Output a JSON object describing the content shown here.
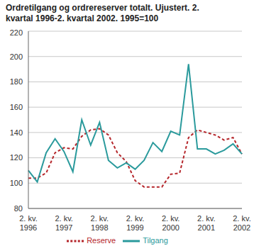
{
  "chart_data": {
    "type": "line",
    "title": "Ordretilgang og ordrereserver totalt. Ujustert. 2. kvartal 1996-2. kvartal 2002. 1995=100",
    "categories": [
      "2. kv. 1996",
      null,
      null,
      null,
      "2. kv. 1997",
      null,
      null,
      null,
      "2. kv. 1998",
      null,
      null,
      null,
      "2. kv. 1999",
      null,
      null,
      null,
      "2. kv. 2000",
      null,
      null,
      null,
      "2. kv. 2001",
      null,
      null,
      null,
      "2. kv. 2002"
    ],
    "series": [
      {
        "name": "Reserve",
        "color": "#b5262b",
        "line_style": "dashed",
        "values": [
          104,
          104,
          108,
          124,
          128,
          127,
          137,
          142,
          143,
          138,
          124,
          117,
          102,
          97,
          97,
          97,
          107,
          108,
          136,
          142,
          140,
          138,
          134,
          136,
          123
        ]
      },
      {
        "name": "Tilgang",
        "color": "#2a9a9c",
        "line_style": "solid",
        "values": [
          110,
          101,
          124,
          135,
          125,
          109,
          150,
          130,
          148,
          118,
          112,
          116,
          111,
          118,
          132,
          125,
          141,
          138,
          194,
          127,
          127,
          123,
          126,
          131,
          123
        ]
      }
    ],
    "ylim": [
      80,
      220
    ],
    "yticks": [
      80,
      100,
      120,
      140,
      160,
      180,
      200,
      220
    ],
    "grid": true,
    "legend": "bottom"
  }
}
